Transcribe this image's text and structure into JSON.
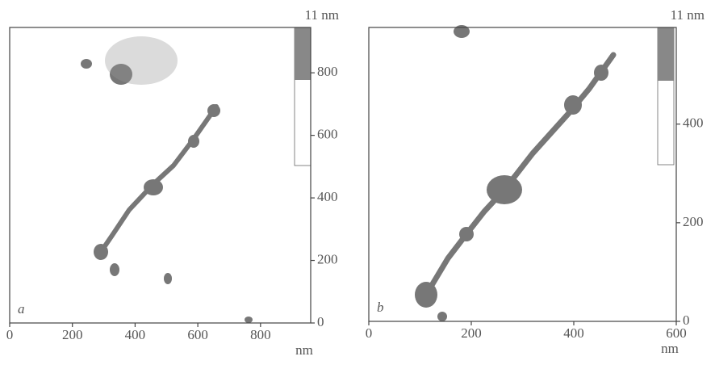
{
  "chart_data": [
    {
      "type": "image",
      "panel_label": "a",
      "colorbar_label": "11 nm",
      "xlabel": "nm",
      "xlim": [
        0,
        960
      ],
      "xticks": [
        0,
        200,
        400,
        600,
        800
      ],
      "ylim": [
        0,
        945
      ],
      "yticks": [
        0,
        200,
        400,
        600,
        800
      ]
    },
    {
      "type": "image",
      "panel_label": "b",
      "colorbar_label": "11 nm",
      "xlabel": "nm",
      "xlim": [
        0,
        600
      ],
      "xticks": [
        0,
        200,
        400,
        600
      ],
      "ylim": [
        0,
        596
      ],
      "yticks": [
        0,
        200,
        400
      ]
    }
  ]
}
